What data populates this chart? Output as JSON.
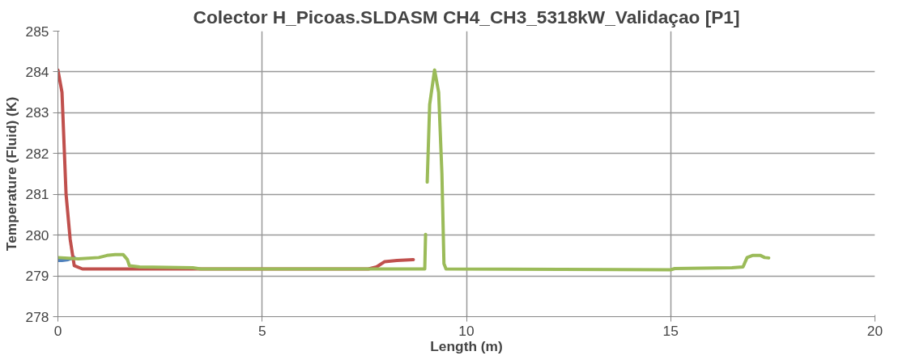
{
  "chart_data": {
    "type": "line",
    "title": "Colector H_Picoas.SLDASM CH4_CH3_5318kW_Validaçao [P1]",
    "xlabel": "Length (m)",
    "ylabel": "Temperature (Fluid) (K)",
    "xlim": [
      0,
      20
    ],
    "xticks": [
      0,
      5,
      10,
      15,
      20
    ],
    "ylim": [
      278,
      285
    ],
    "yticks": [
      278,
      279,
      280,
      281,
      282,
      283,
      284,
      285
    ],
    "grid": true,
    "marker": "none",
    "line_style": "solid",
    "series": [
      {
        "color": "#4f81bd",
        "x": [
          0,
          0.1,
          0.25,
          0.4
        ],
        "values": [
          279.38,
          279.38,
          279.4,
          279.45
        ]
      },
      {
        "color": "#c0504d",
        "x": [
          0,
          0.1,
          0.2,
          0.3,
          0.4,
          0.6,
          3.0,
          7.6,
          7.8,
          8.0,
          8.3,
          8.7
        ],
        "values": [
          284.05,
          283.5,
          281.0,
          279.9,
          279.25,
          279.17,
          279.17,
          279.17,
          279.22,
          279.35,
          279.38,
          279.4
        ]
      },
      {
        "color": "#9bbb59",
        "x": [
          0,
          0.5,
          1.0,
          1.2,
          1.4,
          1.6,
          1.7,
          1.75,
          2.0,
          3.3,
          3.5,
          8.98,
          9.0,
          9.02,
          9.04,
          9.1,
          9.22,
          9.32,
          9.4,
          9.45,
          9.5,
          15.0,
          15.1,
          16.5,
          16.77,
          16.87,
          17.0,
          17.2,
          17.3,
          17.4
        ],
        "values": [
          279.45,
          279.42,
          279.45,
          279.5,
          279.52,
          279.52,
          279.4,
          279.25,
          279.22,
          279.2,
          279.17,
          279.17,
          280.02,
          null,
          281.3,
          283.2,
          284.05,
          283.5,
          281.5,
          279.3,
          279.17,
          279.15,
          279.18,
          279.2,
          279.22,
          279.45,
          279.5,
          279.5,
          279.45,
          279.44
        ]
      }
    ]
  }
}
